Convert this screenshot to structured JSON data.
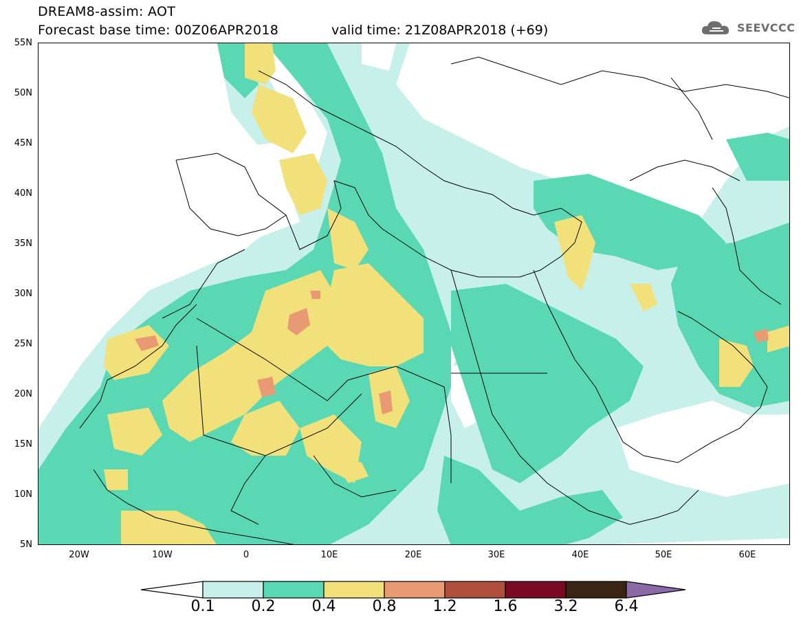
{
  "header": {
    "line1": "DREAM8-assim: AOT",
    "line2": "Forecast base time: 00Z06APR2018",
    "valid": "valid time: 21Z08APR2018 (+69)"
  },
  "logo": {
    "icon": "cloud-icon",
    "text": "SEEVCCC"
  },
  "map": {
    "lat_labels": [
      "55N",
      "50N",
      "45N",
      "40N",
      "35N",
      "30N",
      "25N",
      "20N",
      "15N",
      "10N",
      "5N"
    ],
    "lon_labels": [
      "20W",
      "10W",
      "0",
      "10E",
      "20E",
      "30E",
      "40E",
      "50E",
      "60E"
    ],
    "lat_range": [
      5,
      55
    ],
    "lon_range": [
      -25,
      65
    ]
  },
  "colorbar": {
    "levels": [
      "0.1",
      "0.2",
      "0.4",
      "0.8",
      "1.2",
      "1.6",
      "3.2",
      "6.4"
    ],
    "colors": [
      "#ffffff",
      "#c8f0ea",
      "#5ad8b4",
      "#f2e07a",
      "#e89a74",
      "#b0503c",
      "#7a0a24",
      "#3a2414",
      "#8c6aa8"
    ]
  }
}
